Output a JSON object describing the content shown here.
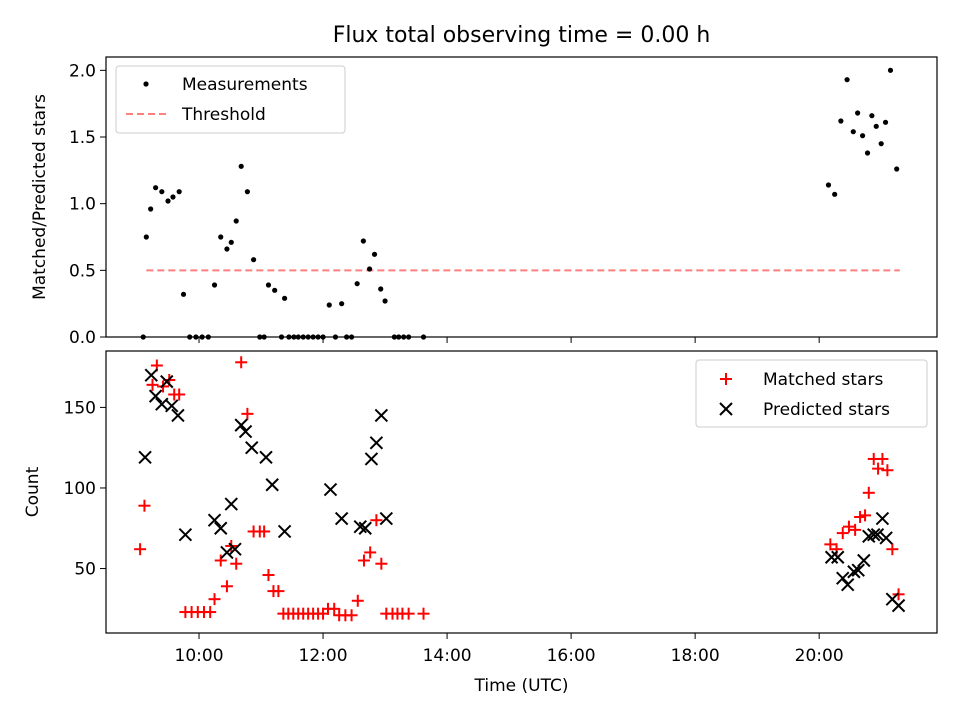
{
  "title": "Flux total observing time = 0.00 h",
  "colors": {
    "measurement": "#000000",
    "threshold": "#ff7f7f",
    "matched": "#ff0000",
    "predicted": "#000000"
  },
  "chart_data": [
    {
      "type": "scatter",
      "ylabel": "Matched/Predicted stars",
      "xlim_hours": [
        8.5,
        21.9
      ],
      "ylim": [
        0,
        2.1
      ],
      "y_ticks": [
        0.0,
        0.5,
        1.0,
        1.5,
        2.0
      ],
      "y_tick_labels": [
        "0.0",
        "0.5",
        "1.0",
        "1.5",
        "2.0"
      ],
      "legend_position": "top-left",
      "legend": [
        {
          "label": "Measurements",
          "marker": "dot",
          "color": "#000000"
        },
        {
          "label": "Threshold",
          "marker": "dash",
          "color": "#ff7f7f"
        }
      ],
      "threshold": {
        "value": 0.5,
        "x_start": 9.15,
        "x_end": 21.3
      },
      "series": [
        {
          "name": "Measurements",
          "points": [
            [
              9.1,
              0.0
            ],
            [
              9.15,
              0.75
            ],
            [
              9.22,
              0.96
            ],
            [
              9.3,
              1.12
            ],
            [
              9.4,
              1.09
            ],
            [
              9.5,
              1.02
            ],
            [
              9.58,
              1.05
            ],
            [
              9.68,
              1.09
            ],
            [
              9.75,
              0.32
            ],
            [
              9.85,
              0.0
            ],
            [
              9.95,
              0.0
            ],
            [
              10.05,
              0.0
            ],
            [
              10.15,
              0.0
            ],
            [
              10.25,
              0.39
            ],
            [
              10.35,
              0.75
            ],
            [
              10.45,
              0.66
            ],
            [
              10.52,
              0.71
            ],
            [
              10.6,
              0.87
            ],
            [
              10.68,
              1.28
            ],
            [
              10.78,
              1.09
            ],
            [
              10.88,
              0.58
            ],
            [
              10.98,
              0.0
            ],
            [
              11.05,
              0.0
            ],
            [
              11.12,
              0.39
            ],
            [
              11.22,
              0.35
            ],
            [
              11.33,
              0.0
            ],
            [
              11.38,
              0.29
            ],
            [
              11.45,
              0.0
            ],
            [
              11.53,
              0.0
            ],
            [
              11.6,
              0.0
            ],
            [
              11.68,
              0.0
            ],
            [
              11.76,
              0.0
            ],
            [
              11.84,
              0.0
            ],
            [
              11.92,
              0.0
            ],
            [
              12.0,
              0.0
            ],
            [
              12.1,
              0.24
            ],
            [
              12.2,
              0.0
            ],
            [
              12.3,
              0.25
            ],
            [
              12.38,
              0.0
            ],
            [
              12.46,
              0.0
            ],
            [
              12.55,
              0.4
            ],
            [
              12.65,
              0.72
            ],
            [
              12.75,
              0.51
            ],
            [
              12.83,
              0.62
            ],
            [
              12.93,
              0.36
            ],
            [
              13.0,
              0.27
            ],
            [
              13.15,
              0.0
            ],
            [
              13.22,
              0.0
            ],
            [
              13.3,
              0.0
            ],
            [
              13.38,
              0.0
            ],
            [
              13.62,
              0.0
            ],
            [
              20.15,
              1.14
            ],
            [
              20.25,
              1.07
            ],
            [
              20.35,
              1.62
            ],
            [
              20.45,
              1.93
            ],
            [
              20.55,
              1.54
            ],
            [
              20.62,
              1.68
            ],
            [
              20.7,
              1.51
            ],
            [
              20.78,
              1.38
            ],
            [
              20.85,
              1.66
            ],
            [
              20.92,
              1.58
            ],
            [
              21.0,
              1.45
            ],
            [
              21.07,
              1.61
            ],
            [
              21.15,
              2.0
            ],
            [
              21.25,
              1.26
            ]
          ]
        }
      ]
    },
    {
      "type": "scatter",
      "ylabel": "Count",
      "xlabel": "Time (UTC)",
      "xlim_hours": [
        8.5,
        21.9
      ],
      "ylim": [
        10,
        185
      ],
      "y_ticks": [
        50,
        100,
        150
      ],
      "y_tick_labels": [
        "50",
        "100",
        "150"
      ],
      "x_ticks_hours": [
        10,
        12,
        14,
        16,
        18,
        20
      ],
      "x_tick_labels": [
        "10:00",
        "12:00",
        "14:00",
        "16:00",
        "18:00",
        "20:00"
      ],
      "legend_position": "top-right",
      "legend": [
        {
          "label": "Matched stars",
          "marker": "plus",
          "color": "#ff0000"
        },
        {
          "label": "Predicted stars",
          "marker": "x",
          "color": "#000000"
        }
      ],
      "series": [
        {
          "name": "Matched stars",
          "points": [
            [
              9.05,
              62
            ],
            [
              9.12,
              89
            ],
            [
              9.25,
              164
            ],
            [
              9.32,
              176
            ],
            [
              9.42,
              163
            ],
            [
              9.52,
              167
            ],
            [
              9.6,
              158
            ],
            [
              9.68,
              158
            ],
            [
              9.78,
              23
            ],
            [
              9.88,
              23
            ],
            [
              9.98,
              23
            ],
            [
              10.08,
              23
            ],
            [
              10.18,
              23
            ],
            [
              10.25,
              31
            ],
            [
              10.35,
              55
            ],
            [
              10.45,
              39
            ],
            [
              10.52,
              64
            ],
            [
              10.6,
              53
            ],
            [
              10.68,
              178
            ],
            [
              10.78,
              146
            ],
            [
              10.88,
              73
            ],
            [
              10.98,
              73
            ],
            [
              11.05,
              73
            ],
            [
              11.12,
              46
            ],
            [
              11.2,
              36
            ],
            [
              11.28,
              36
            ],
            [
              11.36,
              22
            ],
            [
              11.44,
              22
            ],
            [
              11.52,
              22
            ],
            [
              11.6,
              22
            ],
            [
              11.68,
              22
            ],
            [
              11.76,
              22
            ],
            [
              11.84,
              22
            ],
            [
              11.92,
              22
            ],
            [
              12.0,
              22
            ],
            [
              12.08,
              25
            ],
            [
              12.18,
              25
            ],
            [
              12.26,
              21
            ],
            [
              12.36,
              21
            ],
            [
              12.46,
              21
            ],
            [
              12.56,
              30
            ],
            [
              12.66,
              55
            ],
            [
              12.76,
              60
            ],
            [
              12.86,
              80
            ],
            [
              12.94,
              53
            ],
            [
              13.02,
              22
            ],
            [
              13.12,
              22
            ],
            [
              13.2,
              22
            ],
            [
              13.28,
              22
            ],
            [
              13.38,
              22
            ],
            [
              13.62,
              22
            ],
            [
              20.18,
              65
            ],
            [
              20.28,
              62
            ],
            [
              20.38,
              72
            ],
            [
              20.48,
              76
            ],
            [
              20.58,
              74
            ],
            [
              20.66,
              82
            ],
            [
              20.74,
              83
            ],
            [
              20.8,
              97
            ],
            [
              20.88,
              118
            ],
            [
              20.95,
              112
            ],
            [
              21.02,
              118
            ],
            [
              21.1,
              111
            ],
            [
              21.18,
              62
            ],
            [
              21.28,
              34
            ]
          ]
        },
        {
          "name": "Predicted stars",
          "points": [
            [
              9.13,
              119
            ],
            [
              9.23,
              170
            ],
            [
              9.3,
              157
            ],
            [
              9.4,
              152
            ],
            [
              9.48,
              166
            ],
            [
              9.56,
              151
            ],
            [
              9.66,
              145
            ],
            [
              9.78,
              71
            ],
            [
              10.25,
              80
            ],
            [
              10.35,
              75
            ],
            [
              10.45,
              60
            ],
            [
              10.52,
              90
            ],
            [
              10.58,
              62
            ],
            [
              10.68,
              139
            ],
            [
              10.75,
              135
            ],
            [
              10.85,
              125
            ],
            [
              11.08,
              119
            ],
            [
              11.18,
              102
            ],
            [
              11.38,
              73
            ],
            [
              12.12,
              99
            ],
            [
              12.3,
              81
            ],
            [
              12.6,
              76
            ],
            [
              12.68,
              75
            ],
            [
              12.78,
              118
            ],
            [
              12.86,
              128
            ],
            [
              12.94,
              145
            ],
            [
              13.02,
              81
            ],
            [
              20.2,
              57
            ],
            [
              20.3,
              57
            ],
            [
              20.38,
              44
            ],
            [
              20.46,
              40
            ],
            [
              20.56,
              48
            ],
            [
              20.63,
              49
            ],
            [
              20.72,
              55
            ],
            [
              20.8,
              70
            ],
            [
              20.88,
              71
            ],
            [
              20.94,
              71
            ],
            [
              21.02,
              81
            ],
            [
              21.08,
              69
            ],
            [
              21.18,
              31
            ],
            [
              21.28,
              27
            ]
          ]
        }
      ]
    }
  ]
}
